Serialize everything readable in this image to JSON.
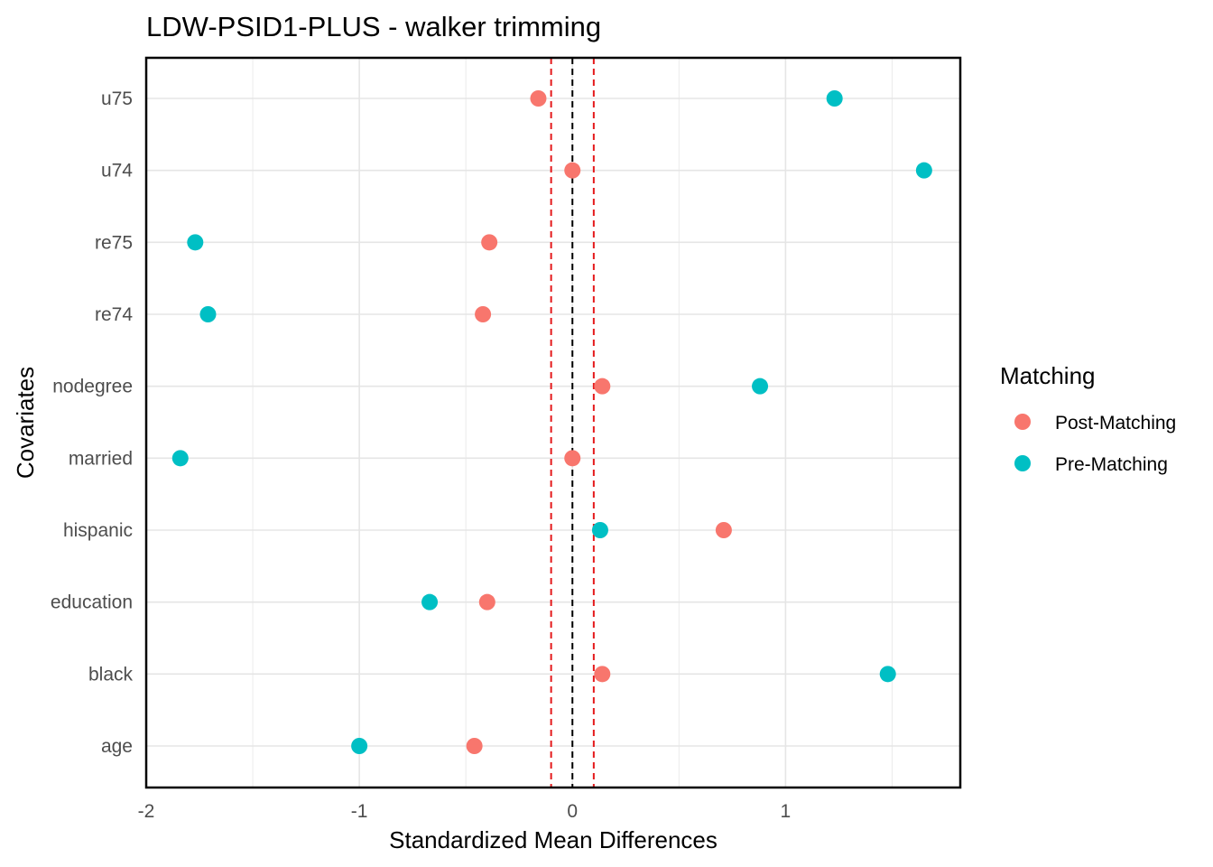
{
  "chart_data": {
    "type": "scatter",
    "title": "LDW-PSID1-PLUS - walker trimming",
    "xlabel": "Standardized Mean Differences",
    "ylabel": "Covariates",
    "xlim": [
      -2,
      1.82
    ],
    "x_ticks": [
      -2,
      -1,
      0,
      1
    ],
    "x_tick_labels": [
      "-2",
      "-1",
      "0",
      "1"
    ],
    "categories": [
      "age",
      "black",
      "education",
      "hispanic",
      "married",
      "nodegree",
      "re74",
      "re75",
      "u74",
      "u75"
    ],
    "series": [
      {
        "name": "Post-Matching",
        "color": "#F8766D",
        "values": [
          -0.46,
          0.14,
          -0.4,
          0.71,
          0.0,
          0.14,
          -0.42,
          -0.39,
          0.0,
          -0.16
        ]
      },
      {
        "name": "Pre-Matching",
        "color": "#00BFC4",
        "values": [
          -1.0,
          1.48,
          -0.67,
          0.13,
          -1.84,
          0.88,
          -1.71,
          -1.77,
          1.65,
          1.23
        ]
      }
    ],
    "reference_lines": [
      {
        "x": 0,
        "color": "#000000",
        "style": "dashed"
      },
      {
        "x": -0.1,
        "color": "#E41A1C",
        "style": "dashed"
      },
      {
        "x": 0.1,
        "color": "#E41A1C",
        "style": "dashed"
      }
    ],
    "legend": {
      "title": "Matching",
      "placement": "right"
    },
    "grid": true
  }
}
